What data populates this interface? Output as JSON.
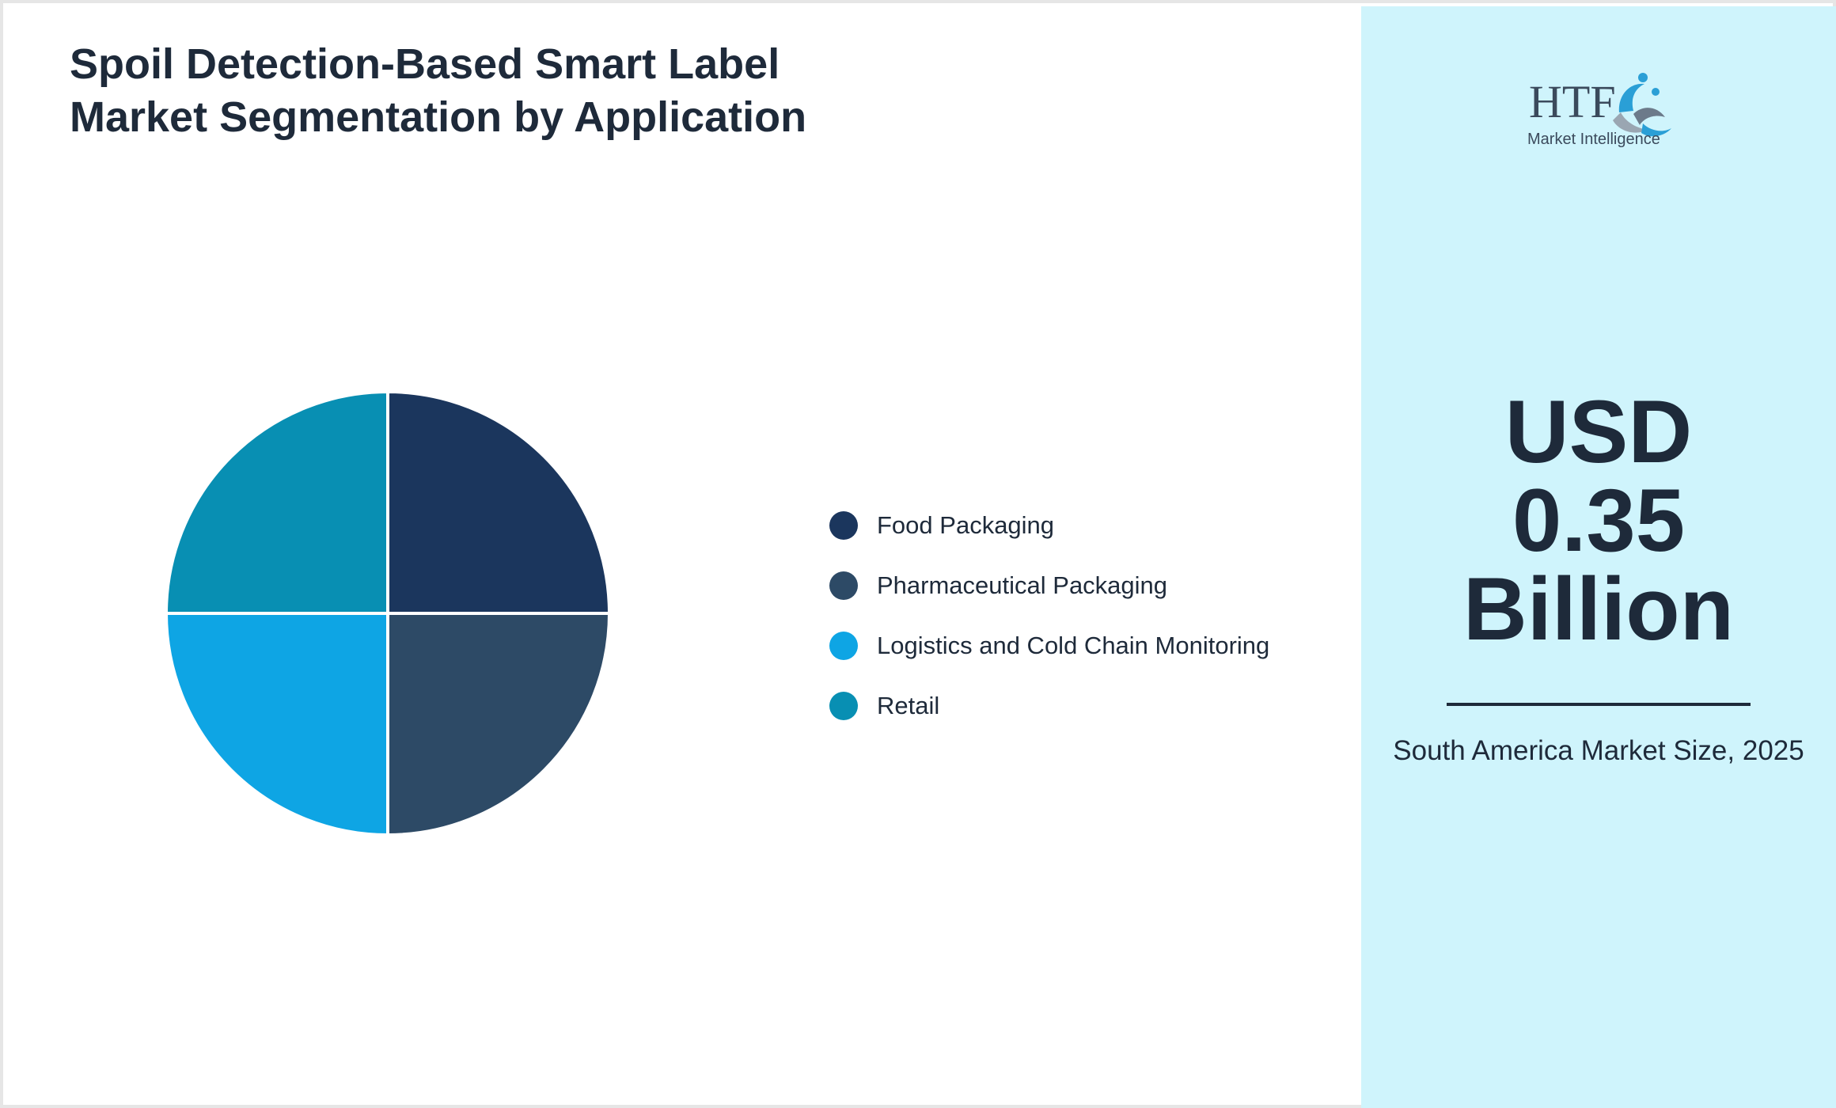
{
  "title": "Spoil Detection-Based Smart Label Market Segmentation by Application",
  "chart_data": {
    "type": "pie",
    "categories": [
      "Food Packaging",
      "Pharmaceutical Packaging",
      "Logistics and Cold Chain Monitoring",
      "Retail"
    ],
    "values": [
      25,
      25,
      25,
      25
    ],
    "colors": [
      "#1b365d",
      "#2d4a66",
      "#0ea5e4",
      "#088fb3"
    ],
    "legend_position": "right"
  },
  "sidebar": {
    "logo": {
      "brand": "HTF",
      "tagline": "Market Intelligence"
    },
    "value_lines": [
      "USD",
      "0.35",
      "Billion"
    ],
    "caption": "South America Market Size, 2025",
    "background_color": "#cff4fc"
  }
}
